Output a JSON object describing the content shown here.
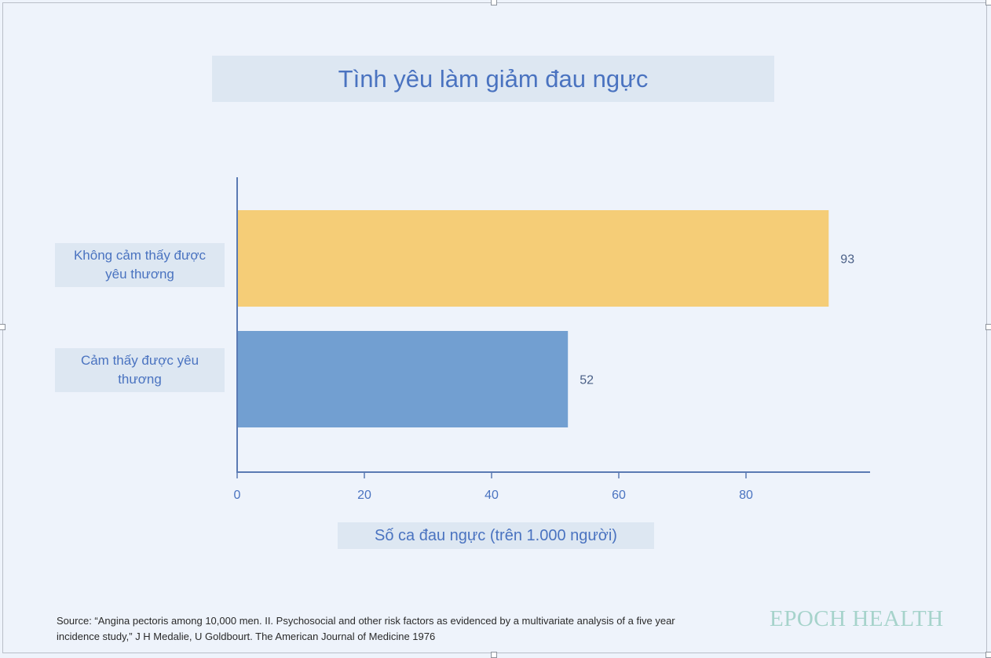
{
  "chart_data": {
    "type": "bar",
    "orientation": "horizontal",
    "title": "Tình yêu làm giảm đau ngực",
    "categories": [
      "Không cảm thấy được yêu thương",
      "Cảm thấy được  yêu thương"
    ],
    "values": [
      93,
      52
    ],
    "data_labels": [
      "93",
      "52"
    ],
    "colors": [
      "#f5cd77",
      "#729fd1"
    ],
    "xlabel": "Số ca đau ngực (trên 1.000 người)",
    "ylabel": "",
    "xlim": [
      0,
      99
    ],
    "xticks": [
      0,
      20,
      40,
      60,
      80
    ],
    "grid": false,
    "legend": "none"
  },
  "source": "Source: “Angina pectoris among 10,000 men. II. Psychosocial and other risk factors as evidenced by a multivariate analysis of a five year incidence study,” J H Medalie, U Goldbourt. The American Journal of Medicine 1976",
  "logo_text": "EPOCH HEALTH",
  "colors": {
    "accent": "#4a73c0",
    "axis": "#5a7ab3",
    "label_box": "#dde7f2",
    "background": "#eef3fb"
  }
}
